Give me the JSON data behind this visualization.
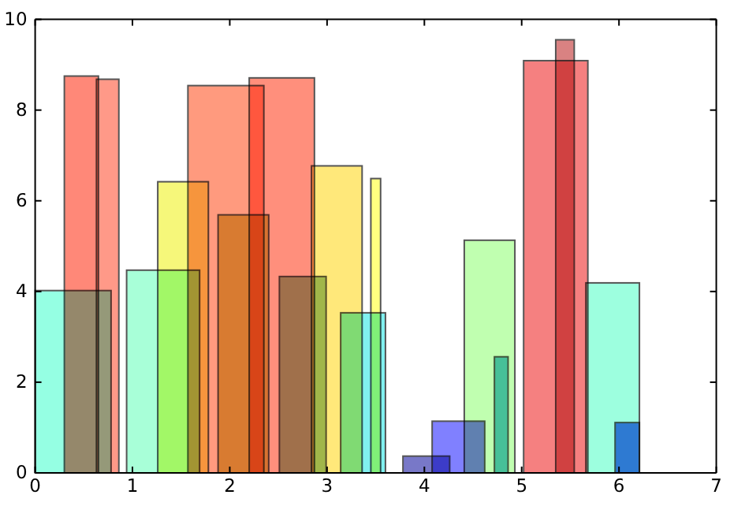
{
  "chart_data": {
    "type": "histogram",
    "xlim": [
      0,
      7
    ],
    "ylim": [
      0,
      10
    ],
    "xticks": [
      0,
      1,
      2,
      3,
      4,
      5,
      6,
      7
    ],
    "yticks": [
      0,
      2,
      4,
      6,
      8,
      10
    ],
    "series": [
      {
        "color": "#95ffe3",
        "x": [
          0.39
        ],
        "bins": [
          0,
          0.78
        ],
        "values": [
          4.02
        ]
      },
      {
        "color": "#ff8878",
        "x": [
          0.475
        ],
        "bins": [
          0.3,
          0.65
        ],
        "values": [
          8.75
        ]
      },
      {
        "color": "#ff9988",
        "x": [
          0.745
        ],
        "bins": [
          0.63,
          0.86
        ],
        "values": [
          8.68
        ]
      },
      {
        "color": "#a8ffd8",
        "x": [
          1.315
        ],
        "bins": [
          0.94,
          1.69
        ],
        "values": [
          4.47
        ]
      },
      {
        "color": "#f6f77a",
        "x": [
          1.52
        ],
        "bins": [
          1.26,
          1.78
        ],
        "values": [
          6.42
        ]
      },
      {
        "color": "#ff9a7e",
        "x": [
          1.96
        ],
        "bins": [
          1.57,
          2.35
        ],
        "values": [
          8.54
        ]
      },
      {
        "color": "#d8cc62",
        "x": [
          2.14
        ],
        "bins": [
          1.88,
          2.4
        ],
        "values": [
          5.69
        ]
      },
      {
        "color": "#ff8f7c",
        "x": [
          2.535
        ],
        "bins": [
          2.2,
          2.87
        ],
        "values": [
          8.71
        ]
      },
      {
        "color": "#a0c89a",
        "x": [
          2.75
        ],
        "bins": [
          2.51,
          2.99
        ],
        "values": [
          4.33
        ]
      },
      {
        "color": "#ffe87a",
        "x": [
          3.1
        ],
        "bins": [
          2.84,
          3.36
        ],
        "values": [
          6.77
        ]
      },
      {
        "color": "#ffff80",
        "x": [
          3.5
        ],
        "bins": [
          3.45,
          3.55
        ],
        "values": [
          6.49
        ]
      },
      {
        "color": "#80f0f0",
        "x": [
          3.37
        ],
        "bins": [
          3.14,
          3.6
        ],
        "values": [
          3.53
        ]
      },
      {
        "color": "#7878c8",
        "x": [
          4.02
        ],
        "bins": [
          3.78,
          4.26
        ],
        "values": [
          0.37
        ]
      },
      {
        "color": "#8080ff",
        "x": [
          4.35
        ],
        "bins": [
          4.08,
          4.62
        ],
        "values": [
          1.14
        ]
      },
      {
        "color": "#c0ffb0",
        "x": [
          4.67
        ],
        "bins": [
          4.41,
          4.93
        ],
        "values": [
          5.13
        ]
      },
      {
        "color": "#5ec0dc",
        "x": [
          4.79
        ],
        "bins": [
          4.72,
          4.86
        ],
        "values": [
          2.56
        ]
      },
      {
        "color": "#f58080",
        "x": [
          5.35
        ],
        "bins": [
          5.02,
          5.68
        ],
        "values": [
          9.09
        ]
      },
      {
        "color": "#d98282",
        "x": [
          5.445
        ],
        "bins": [
          5.35,
          5.54
        ],
        "values": [
          9.55
        ]
      },
      {
        "color": "#9dffdf",
        "x": [
          5.935
        ],
        "bins": [
          5.66,
          6.21
        ],
        "values": [
          4.19
        ]
      },
      {
        "color": "#4a7af0",
        "x": [
          6.085
        ],
        "bins": [
          5.96,
          6.21
        ],
        "values": [
          1.11
        ]
      }
    ]
  }
}
